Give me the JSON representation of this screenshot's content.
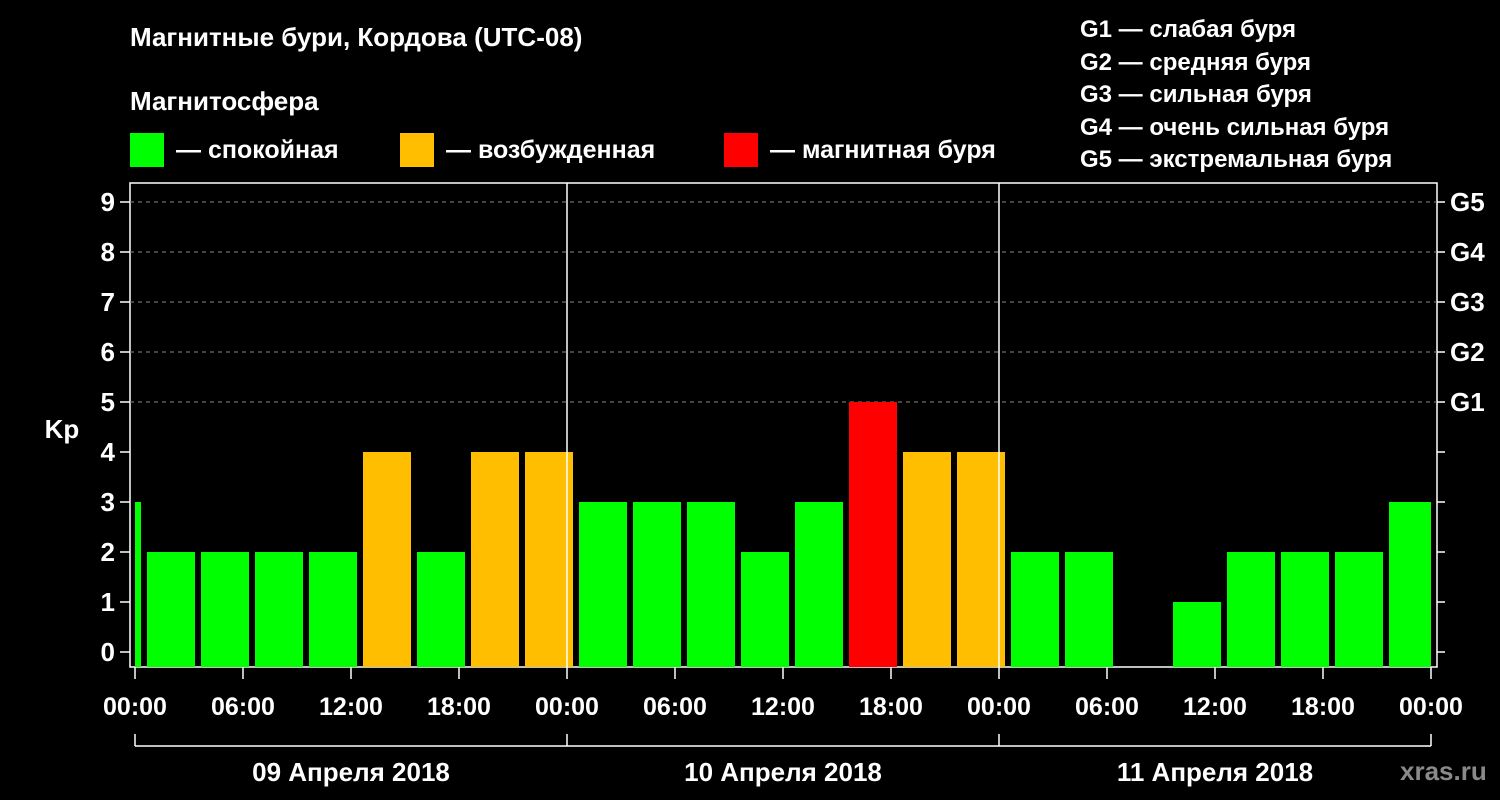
{
  "title": "Магнитные бури, Кордова (UTC-08)",
  "subtitle": "Магнитосфера",
  "legend": [
    {
      "label": "— спокойная",
      "color": "#00ff00"
    },
    {
      "label": "— возбужденная",
      "color": "#ffbf00"
    },
    {
      "label": "— магнитная буря",
      "color": "#ff0000"
    }
  ],
  "storm_legend": [
    "G1 — слабая буря",
    "G2 — средняя буря",
    "G3 — сильная буря",
    "G4 — очень сильная буря",
    "G5 — экстремальная буря"
  ],
  "watermark": "xras.ru",
  "chart_data": {
    "type": "bar",
    "ylabel": "Kp",
    "ylim": [
      0,
      9
    ],
    "yticks": [
      "0",
      "1",
      "2",
      "3",
      "4",
      "5",
      "6",
      "7",
      "8",
      "9"
    ],
    "right_labels": [
      {
        "kp": 5,
        "label": "G1"
      },
      {
        "kp": 6,
        "label": "G2"
      },
      {
        "kp": 7,
        "label": "G3"
      },
      {
        "kp": 8,
        "label": "G4"
      },
      {
        "kp": 9,
        "label": "G5"
      }
    ],
    "x_tick_labels": [
      "00:00",
      "06:00",
      "12:00",
      "18:00",
      "00:00",
      "06:00",
      "12:00",
      "18:00",
      "00:00",
      "06:00",
      "12:00",
      "18:00",
      "00:00"
    ],
    "days": [
      "09 Апреля 2018",
      "10 Апреля 2018",
      "11 Апреля 2018"
    ],
    "time_range_hours": [
      0,
      72
    ],
    "bar_width_hours": 3,
    "first_bar_center_hours": -1,
    "colors": {
      "quiet": "#00ff00",
      "active": "#ffbf00",
      "storm": "#ff0000"
    },
    "values": [
      3,
      2,
      2,
      2,
      2,
      4,
      2,
      4,
      4,
      3,
      3,
      3,
      2,
      3,
      5,
      4,
      4,
      2,
      2,
      0,
      1,
      2,
      2,
      2,
      3
    ],
    "levels": [
      "quiet",
      "quiet",
      "quiet",
      "quiet",
      "quiet",
      "active",
      "quiet",
      "active",
      "active",
      "quiet",
      "quiet",
      "quiet",
      "quiet",
      "quiet",
      "storm",
      "active",
      "active",
      "quiet",
      "quiet",
      "quiet",
      "quiet",
      "quiet",
      "quiet",
      "quiet",
      "quiet"
    ]
  }
}
